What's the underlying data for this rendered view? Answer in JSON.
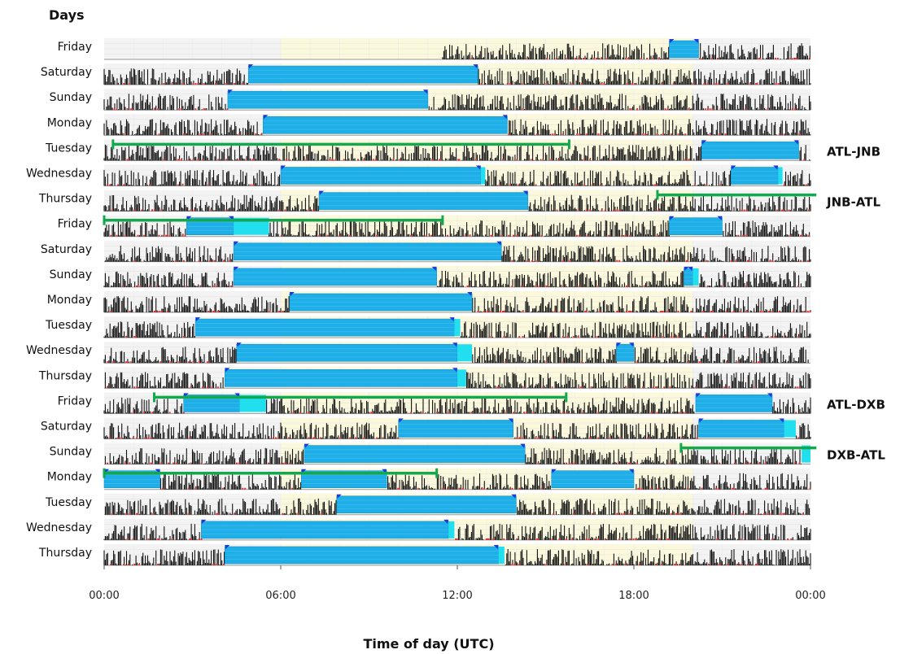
{
  "chart_data": {
    "type": "bar",
    "title": "Days",
    "xlabel": "Time of day (UTC)",
    "ylabel": "",
    "x_range_hours": [
      0,
      24
    ],
    "x_ticks": [
      "00:00",
      "06:00",
      "12:00",
      "18:00",
      "00:00"
    ],
    "x_tick_hours": [
      0,
      6,
      12,
      18,
      24
    ],
    "daytime_hours": [
      6,
      20
    ],
    "grid": true,
    "colors": {
      "sleep": "#1eaee8",
      "sleep_light": "#22dff0",
      "activity": "#111111",
      "low_activity": "#e03030",
      "daytime_shade": "#fbf8dc",
      "night_shade": "#f3f3f3",
      "travel": "#13a84e",
      "marker": "#1c3ad8"
    },
    "days": [
      {
        "label": "Friday",
        "sleep": [
          [
            19.2,
            20.2
          ]
        ],
        "light": [],
        "start": 11.5
      },
      {
        "label": "Saturday",
        "sleep": [
          [
            4.9,
            12.7
          ]
        ],
        "light": [],
        "start": 0
      },
      {
        "label": "Sunday",
        "sleep": [
          [
            4.2,
            11.0
          ]
        ],
        "light": [],
        "start": 0
      },
      {
        "label": "Monday",
        "sleep": [
          [
            5.4,
            13.7
          ]
        ],
        "light": [],
        "start": 0
      },
      {
        "label": "Tuesday",
        "sleep": [
          [
            20.3,
            23.6
          ]
        ],
        "light": [],
        "start": 0
      },
      {
        "label": "Wednesday",
        "sleep": [
          [
            6.0,
            12.8
          ],
          [
            21.3,
            22.9
          ]
        ],
        "light": [
          [
            12.8,
            12.95
          ],
          [
            22.9,
            23.05
          ]
        ],
        "start": 0
      },
      {
        "label": "Thursday",
        "sleep": [
          [
            7.3,
            14.4
          ]
        ],
        "light": [],
        "start": 0
      },
      {
        "label": "Friday",
        "sleep": [
          [
            2.8,
            4.4
          ],
          [
            19.2,
            21.0
          ]
        ],
        "light": [
          [
            4.4,
            5.6
          ]
        ],
        "start": 0
      },
      {
        "label": "Saturday",
        "sleep": [
          [
            4.4,
            13.5
          ]
        ],
        "light": [],
        "start": 0
      },
      {
        "label": "Sunday",
        "sleep": [
          [
            4.4,
            11.3
          ],
          [
            19.7,
            20.0
          ]
        ],
        "light": [
          [
            20.0,
            20.2
          ]
        ],
        "start": 0
      },
      {
        "label": "Monday",
        "sleep": [
          [
            6.3,
            12.5
          ]
        ],
        "light": [],
        "start": 0
      },
      {
        "label": "Tuesday",
        "sleep": [
          [
            3.1,
            11.9
          ]
        ],
        "light": [
          [
            11.9,
            12.1
          ]
        ],
        "start": 0
      },
      {
        "label": "Wednesday",
        "sleep": [
          [
            4.5,
            12.0
          ],
          [
            17.4,
            18.0
          ]
        ],
        "light": [
          [
            12.0,
            12.5
          ]
        ],
        "start": 0
      },
      {
        "label": "Thursday",
        "sleep": [
          [
            4.1,
            12.0
          ]
        ],
        "light": [
          [
            12.0,
            12.3
          ]
        ],
        "start": 0
      },
      {
        "label": "Friday",
        "sleep": [
          [
            2.7,
            4.6
          ],
          [
            20.1,
            22.7
          ]
        ],
        "light": [
          [
            4.6,
            5.5
          ]
        ],
        "start": 0
      },
      {
        "label": "Saturday",
        "sleep": [
          [
            10.0,
            13.9
          ],
          [
            20.2,
            23.1
          ]
        ],
        "light": [
          [
            23.1,
            23.5
          ]
        ],
        "start": 0
      },
      {
        "label": "Sunday",
        "sleep": [
          [
            6.8,
            14.3
          ]
        ],
        "light": [
          [
            23.7,
            24.0
          ]
        ],
        "start": 0
      },
      {
        "label": "Monday",
        "sleep": [
          [
            0.0,
            1.9
          ],
          [
            6.7,
            9.6
          ],
          [
            15.2,
            18.0
          ]
        ],
        "light": [],
        "start": 0
      },
      {
        "label": "Tuesday",
        "sleep": [
          [
            7.9,
            14.0
          ]
        ],
        "light": [],
        "start": 0
      },
      {
        "label": "Wednesday",
        "sleep": [
          [
            3.3,
            11.7
          ]
        ],
        "light": [
          [
            11.7,
            11.9
          ]
        ],
        "start": 0
      },
      {
        "label": "Thursday",
        "sleep": [
          [
            4.1,
            13.4
          ]
        ],
        "light": [
          [
            13.4,
            13.6
          ]
        ],
        "start": 0
      }
    ],
    "travel_segments": [
      {
        "day_start": 4,
        "hour_start": 0.3,
        "day_end": 4,
        "hour_end": 15.8,
        "label": "ATL-JNB"
      },
      {
        "day_start": 6,
        "hour_start": 18.8,
        "day_end": 6,
        "hour_end": 24.2,
        "label": "JNB-ATL"
      },
      {
        "day_start": 7,
        "hour_start": 0.0,
        "day_end": 7,
        "hour_end": 11.5,
        "label": ""
      },
      {
        "day_start": 14,
        "hour_start": 1.7,
        "day_end": 14,
        "hour_end": 15.7,
        "label": "ATL-DXB"
      },
      {
        "day_start": 16,
        "hour_start": 19.6,
        "day_end": 16,
        "hour_end": 24.2,
        "label": "DXB-ATL"
      },
      {
        "day_start": 17,
        "hour_start": 0.0,
        "day_end": 17,
        "hour_end": 11.3,
        "label": ""
      }
    ]
  }
}
